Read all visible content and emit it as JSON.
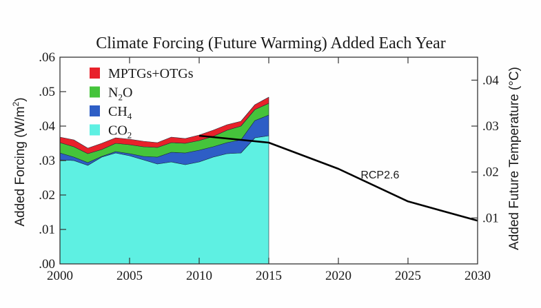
{
  "chart_data": {
    "type": "area",
    "title": "Climate Forcing (Future Warming) Added Each Year",
    "xlabel": "",
    "ylabel": "Added Forcing (W/m²)",
    "ylabel_parts": {
      "main": "Added Forcing (W/m",
      "sup": "2",
      "end": ")"
    },
    "y2label": "Added Future Temperature (°C)",
    "xlim": [
      2000,
      2030
    ],
    "ylim": [
      0,
      0.06
    ],
    "y2lim": [
      0,
      0.045
    ],
    "x_ticks": [
      2000,
      2005,
      2010,
      2015,
      2020,
      2025,
      2030
    ],
    "x_tick_labels": [
      "2000",
      "2005",
      "2010",
      "2015",
      "2020",
      "2025",
      "2030"
    ],
    "y_ticks": [
      0,
      0.01,
      0.02,
      0.03,
      0.04,
      0.05,
      0.06
    ],
    "y_tick_labels": [
      ".00",
      ".01",
      ".02",
      ".03",
      ".04",
      ".05",
      ".06"
    ],
    "y2_ticks": [
      0.01,
      0.02,
      0.03,
      0.04
    ],
    "y2_tick_labels": [
      ".01",
      ".02",
      ".03",
      ".04"
    ],
    "grid": false,
    "legend_position": "top-left",
    "stacked": true,
    "x": [
      2000,
      2001,
      2002,
      2003,
      2004,
      2005,
      2006,
      2007,
      2008,
      2009,
      2010,
      2011,
      2012,
      2013,
      2014,
      2015
    ],
    "series": [
      {
        "name": "CO2",
        "label_main": "CO",
        "label_sub": "2",
        "color": "#5ef0e2",
        "values": [
          0.0302,
          0.03,
          0.0286,
          0.031,
          0.0322,
          0.0314,
          0.0302,
          0.029,
          0.0296,
          0.0288,
          0.0296,
          0.031,
          0.032,
          0.0322,
          0.0366,
          0.0372
        ]
      },
      {
        "name": "CH4",
        "label_main": "CH",
        "label_sub": "4",
        "color": "#2e5ec6",
        "values": [
          0.002,
          0.001,
          0.0008,
          0.0002,
          0.0004,
          0.0006,
          0.001,
          0.002,
          0.0028,
          0.0034,
          0.0034,
          0.003,
          0.0032,
          0.0038,
          0.005,
          0.006
        ]
      },
      {
        "name": "N2O",
        "label_main": "N",
        "label_sub": "2",
        "label_end": "O",
        "color": "#45c43b",
        "values": [
          0.003,
          0.003,
          0.0026,
          0.002,
          0.0024,
          0.0026,
          0.0028,
          0.0028,
          0.0028,
          0.0028,
          0.0028,
          0.003,
          0.0036,
          0.004,
          0.0032,
          0.0034
        ]
      },
      {
        "name": "MPTGs+OTGs",
        "label_main": "MPTGs+OTGs",
        "label_sub": "",
        "color": "#e8212a",
        "values": [
          0.0016,
          0.002,
          0.0016,
          0.0018,
          0.0016,
          0.0016,
          0.0016,
          0.0014,
          0.0016,
          0.0014,
          0.0016,
          0.0018,
          0.0016,
          0.0014,
          0.0014,
          0.0018
        ]
      }
    ],
    "line_series": {
      "name": "RCP2.6",
      "axis": "right",
      "color": "#000000",
      "x": [
        2010,
        2015,
        2020,
        2025,
        2030
      ],
      "values": [
        0.0279,
        0.0264,
        0.0207,
        0.0136,
        0.0094
      ]
    },
    "annotations": [
      {
        "text": "RCP2.6",
        "x": 2021.6,
        "y2": 0.0195
      }
    ]
  }
}
